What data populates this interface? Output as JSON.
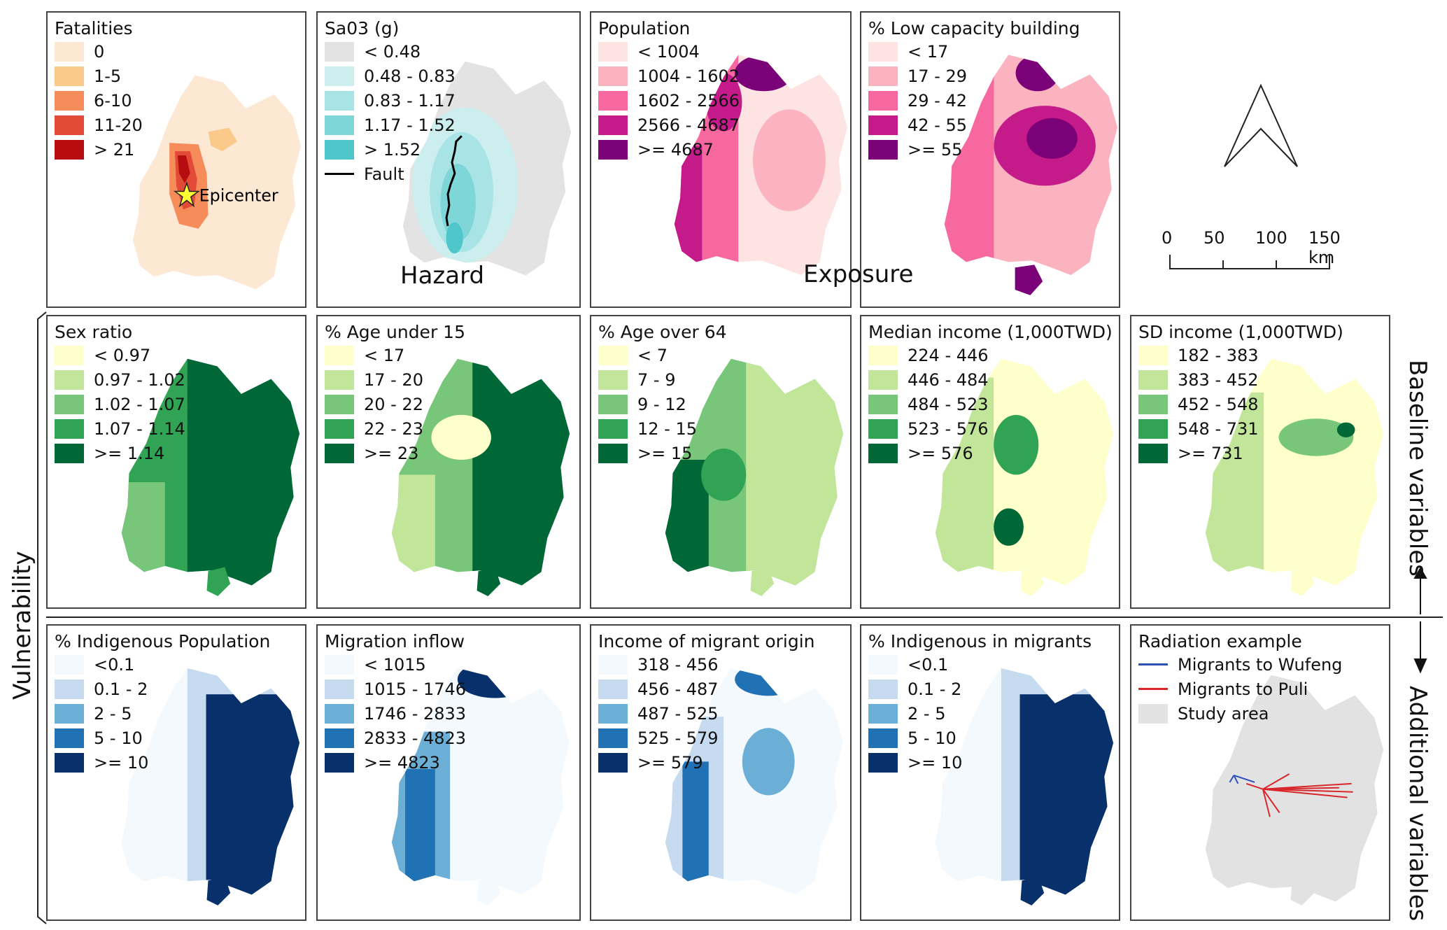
{
  "colors": {
    "fatalities": [
      "#fde8d4",
      "#fbc98a",
      "#f58c5a",
      "#e04a36",
      "#b50d10"
    ],
    "hazard": [
      "#e3e3e3",
      "#cdeeee",
      "#a8e4e6",
      "#7fd6d9",
      "#4ec6ca"
    ],
    "population": [
      "#fde3e1",
      "#fbb4bf",
      "#f768a1",
      "#c51b8a",
      "#7a0177"
    ],
    "greens": [
      "#ffffcc",
      "#c2e699",
      "#78c679",
      "#31a354",
      "#006837"
    ],
    "blues": [
      "#f4f9fe",
      "#c6dbef",
      "#6baed6",
      "#2171b5",
      "#08306b"
    ],
    "fault": "#000000",
    "migrants_wufeng": "#2c4fb8",
    "migrants_puli": "#d9262b",
    "study_area": "#e2e2e2"
  },
  "panels": {
    "fatalities": {
      "title": "Fatalities",
      "items": [
        "0",
        "1-5",
        "6-10",
        "11-20",
        "> 21"
      ],
      "epicenter_label": "Epicenter"
    },
    "sa03": {
      "title": "Sa03 (g)",
      "items": [
        "< 0.48",
        "0.48 - 0.83",
        "0.83 - 1.17",
        "1.17 - 1.52",
        "> 1.52"
      ],
      "fault_label": "Fault"
    },
    "population": {
      "title": "Population",
      "items": [
        "< 1004",
        "1004 - 1602",
        "1602 - 2566",
        "2566 - 4687",
        ">= 4687"
      ]
    },
    "low_capacity": {
      "title": "% Low capacity building",
      "items": [
        "< 17",
        "17 - 29",
        "29 - 42",
        "42 - 55",
        ">= 55"
      ]
    },
    "sex_ratio": {
      "title": "Sex ratio",
      "items": [
        "< 0.97",
        "0.97 - 1.02",
        "1.02 - 1.07",
        "1.07 - 1.14",
        ">= 1.14"
      ]
    },
    "age_under_15": {
      "title": "% Age under 15",
      "items": [
        "< 17",
        "17 - 20",
        "20 - 22",
        "22 - 23",
        ">= 23"
      ]
    },
    "age_over_64": {
      "title": "% Age over 64",
      "items": [
        "< 7",
        "7 - 9",
        "9 - 12",
        "12 - 15",
        ">= 15"
      ]
    },
    "median_income": {
      "title": "Median income (1,000TWD)",
      "items": [
        "224 - 446",
        "446 - 484",
        "484 - 523",
        "523 - 576",
        ">= 576"
      ]
    },
    "sd_income": {
      "title": "SD income (1,000TWD)",
      "items": [
        "182 - 383",
        "383 - 452",
        "452 - 548",
        "548 - 731",
        ">= 731"
      ]
    },
    "indigenous_pop": {
      "title": "% Indigenous Population",
      "items": [
        "<0.1",
        "0.1 - 2",
        "2 - 5",
        "5 - 10",
        ">= 10"
      ]
    },
    "migration_inflow": {
      "title": "Migration inflow",
      "items": [
        "< 1015",
        "1015 - 1746",
        "1746 - 2833",
        "2833 - 4823",
        ">= 4823"
      ]
    },
    "migrant_income": {
      "title": "Income of migrant origin",
      "items": [
        "318 - 456",
        "456 - 487",
        "487 - 525",
        "525 - 579",
        ">= 579"
      ]
    },
    "indigenous_migrants": {
      "title": "% Indigenous in migrants",
      "items": [
        "<0.1",
        "0.1 - 2",
        "2 - 5",
        "5 - 10",
        ">= 10"
      ]
    },
    "radiation": {
      "title": "Radiation example",
      "items": [
        "Migrants to Wufeng",
        "Migrants to Puli",
        "Study area"
      ]
    }
  },
  "labels": {
    "hazard": "Hazard",
    "exposure": "Exposure",
    "vulnerability": "Vulnerability",
    "baseline": "Baseline variables",
    "additional": "Additional variables"
  },
  "scale_bar": {
    "ticks": [
      "0",
      "50",
      "100",
      "150 km"
    ]
  }
}
